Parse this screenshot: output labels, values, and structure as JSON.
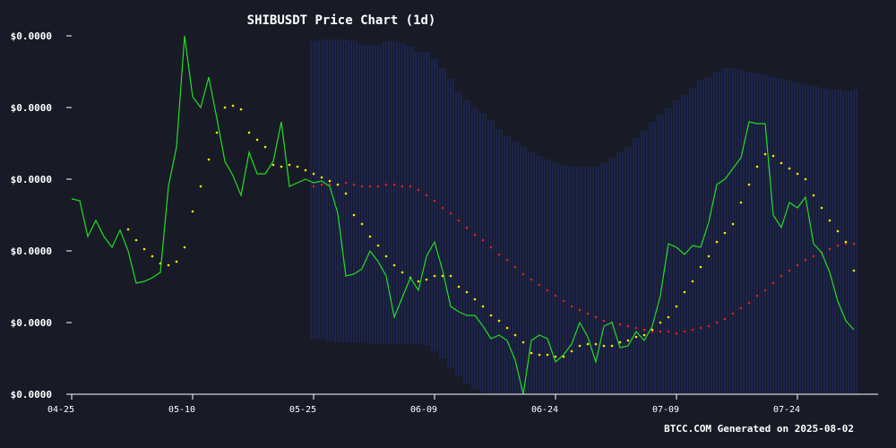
{
  "chart_data": {
    "type": "line",
    "title": "SHIBUSDT Price Chart (1d)",
    "footer": "BTCC.COM Generated on 2025-08-02",
    "xlabel": "",
    "ylabel": "",
    "x_tick_labels": [
      "04-25",
      "05-10",
      "05-25",
      "06-09",
      "06-24",
      "07-09",
      "07-24"
    ],
    "x_tick_days": [
      0,
      15,
      30,
      45,
      60,
      75,
      90
    ],
    "y_tick_labels": [
      "$0.0000",
      "$0.0000",
      "$0.0000",
      "$0.0000",
      "$0.0000",
      "$0.0000"
    ],
    "ylim": [
      0.0,
      1.0
    ],
    "y_ticks": [
      0.0,
      0.2,
      0.4,
      0.6,
      0.8,
      1.0
    ],
    "grid": false,
    "colors": {
      "background": "#181b26",
      "price": "#22dd22",
      "ma_short": "#ffee00",
      "ma_long": "#dd2222",
      "band": "#2a3bb0",
      "text": "#ffffff"
    },
    "series": [
      {
        "key": "price",
        "style": "line",
        "values": [
          0.545,
          0.54,
          0.44,
          0.485,
          0.44,
          0.41,
          0.458,
          0.4,
          0.31,
          0.315,
          0.325,
          0.34,
          0.58,
          0.69,
          1.0,
          0.83,
          0.8,
          0.885,
          0.77,
          0.65,
          0.61,
          0.555,
          0.675,
          0.615,
          0.615,
          0.65,
          0.76,
          0.58,
          0.59,
          0.6,
          0.59,
          0.595,
          0.58,
          0.505,
          0.33,
          0.335,
          0.35,
          0.4,
          0.37,
          0.33,
          0.215,
          0.27,
          0.325,
          0.29,
          0.385,
          0.425,
          0.345,
          0.245,
          0.23,
          0.22,
          0.22,
          0.19,
          0.155,
          0.165,
          0.15,
          0.095,
          0.0,
          0.15,
          0.165,
          0.155,
          0.09,
          0.11,
          0.14,
          0.2,
          0.16,
          0.09,
          0.19,
          0.2,
          0.13,
          0.135,
          0.175,
          0.15,
          0.19,
          0.275,
          0.42,
          0.41,
          0.39,
          0.415,
          0.41,
          0.48,
          0.585,
          0.6,
          0.63,
          0.66,
          0.76,
          0.755,
          0.755,
          0.5,
          0.465,
          0.535,
          0.52,
          0.55,
          0.42,
          0.395,
          0.34,
          0.26,
          0.205,
          0.18
        ]
      },
      {
        "key": "ma_short",
        "style": "dots",
        "values": [
          null,
          null,
          null,
          null,
          null,
          null,
          null,
          0.46,
          0.43,
          0.405,
          0.385,
          0.365,
          0.36,
          0.37,
          0.41,
          0.51,
          0.58,
          0.655,
          0.73,
          0.8,
          0.805,
          0.795,
          0.73,
          0.71,
          0.69,
          0.64,
          0.635,
          0.64,
          0.635,
          0.625,
          0.615,
          0.605,
          0.595,
          0.585,
          0.56,
          0.5,
          0.475,
          0.44,
          0.415,
          0.385,
          0.36,
          0.34,
          0.325,
          0.315,
          0.32,
          0.33,
          0.33,
          0.33,
          0.3,
          0.285,
          0.265,
          0.245,
          0.22,
          0.205,
          0.185,
          0.165,
          0.145,
          0.115,
          0.11,
          0.11,
          0.105,
          0.105,
          0.12,
          0.135,
          0.14,
          0.14,
          0.135,
          0.135,
          0.145,
          0.15,
          0.16,
          0.165,
          0.18,
          0.2,
          0.215,
          0.245,
          0.285,
          0.315,
          0.355,
          0.385,
          0.425,
          0.45,
          0.475,
          0.535,
          0.585,
          0.635,
          0.67,
          0.665,
          0.645,
          0.63,
          0.615,
          0.6,
          0.555,
          0.52,
          0.485,
          0.455,
          0.425,
          0.345
        ]
      },
      {
        "key": "ma_long",
        "style": "dots",
        "values": [
          null,
          null,
          null,
          null,
          null,
          null,
          null,
          null,
          null,
          null,
          null,
          null,
          null,
          null,
          null,
          null,
          null,
          null,
          null,
          null,
          null,
          null,
          null,
          null,
          null,
          null,
          null,
          null,
          null,
          null,
          0.58,
          0.585,
          0.585,
          0.585,
          0.59,
          0.585,
          0.58,
          0.58,
          0.58,
          0.585,
          0.585,
          0.58,
          0.58,
          0.57,
          0.555,
          0.54,
          0.52,
          0.505,
          0.485,
          0.465,
          0.445,
          0.43,
          0.41,
          0.39,
          0.375,
          0.355,
          0.335,
          0.32,
          0.305,
          0.29,
          0.275,
          0.26,
          0.245,
          0.235,
          0.225,
          0.215,
          0.205,
          0.2,
          0.195,
          0.19,
          0.185,
          0.18,
          0.175,
          0.175,
          0.175,
          0.17,
          0.175,
          0.18,
          0.185,
          0.19,
          0.2,
          0.21,
          0.225,
          0.24,
          0.255,
          0.275,
          0.29,
          0.31,
          0.33,
          0.345,
          0.36,
          0.375,
          0.385,
          0.395,
          0.405,
          0.415,
          0.42,
          0.42
        ]
      }
    ],
    "band": {
      "start": 30,
      "upper": [
        0.985,
        0.99,
        0.99,
        0.99,
        0.99,
        0.985,
        0.975,
        0.975,
        0.975,
        0.985,
        0.985,
        0.98,
        0.97,
        0.955,
        0.955,
        0.935,
        0.91,
        0.88,
        0.845,
        0.82,
        0.8,
        0.785,
        0.765,
        0.74,
        0.72,
        0.705,
        0.69,
        0.675,
        0.665,
        0.655,
        0.645,
        0.64,
        0.635,
        0.635,
        0.635,
        0.635,
        0.645,
        0.66,
        0.675,
        0.69,
        0.715,
        0.735,
        0.76,
        0.78,
        0.8,
        0.82,
        0.835,
        0.855,
        0.875,
        0.885,
        0.9,
        0.91,
        0.91,
        0.905,
        0.9,
        0.895,
        0.89,
        0.885,
        0.88,
        0.875,
        0.87,
        0.865,
        0.86,
        0.855,
        0.85,
        0.85,
        0.845,
        0.85
      ],
      "lower": [
        0.155,
        0.155,
        0.15,
        0.145,
        0.145,
        0.145,
        0.145,
        0.14,
        0.14,
        0.14,
        0.14,
        0.14,
        0.14,
        0.14,
        0.135,
        0.12,
        0.1,
        0.075,
        0.05,
        0.03,
        0.015,
        0.005,
        0.0,
        0.0,
        0.0,
        0.0,
        0.0,
        0.0,
        0.0,
        0.0,
        0.0,
        0.0,
        0.0,
        0.0,
        0.0,
        0.0,
        0.0,
        0.0,
        0.0,
        0.0,
        0.0,
        0.0,
        0.0,
        0.0,
        0.0,
        0.0,
        0.0,
        0.0,
        0.0,
        0.0,
        0.0,
        0.0,
        0.0,
        0.0,
        0.0,
        0.0,
        0.0,
        0.0,
        0.0,
        0.0,
        0.0,
        0.0,
        0.0,
        0.0,
        0.0,
        0.0,
        0.0,
        0.0
      ]
    }
  }
}
